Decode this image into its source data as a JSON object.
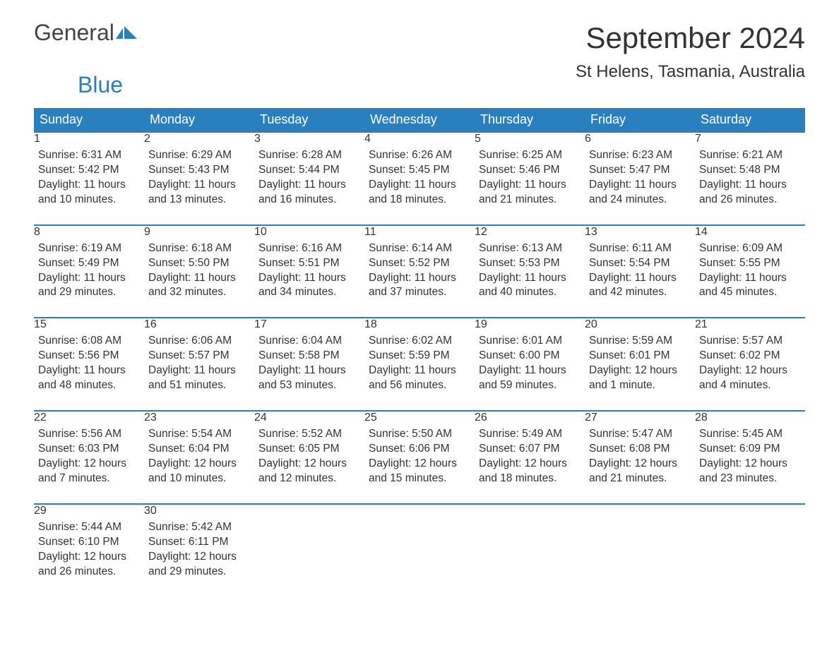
{
  "logo": {
    "part1": "General",
    "part2": "Blue"
  },
  "title": "September 2024",
  "location": "St Helens, Tasmania, Australia",
  "colors": {
    "header_bg": "#2a7fbf",
    "header_text": "#ffffff",
    "daynum_bg": "#eeeeee",
    "daynum_text": "#666666",
    "body_text": "#333333",
    "row_border": "#2a7fbf",
    "page_bg": "#ffffff",
    "logo_gray": "#444444",
    "logo_blue": "#2a7fbf"
  },
  "fonts": {
    "month_title_size_pt": 32,
    "location_size_pt": 18,
    "header_size_pt": 14,
    "daynum_size_pt": 13,
    "body_size_pt": 12
  },
  "weekdays": [
    "Sunday",
    "Monday",
    "Tuesday",
    "Wednesday",
    "Thursday",
    "Friday",
    "Saturday"
  ],
  "weeks": [
    [
      {
        "day": "1",
        "sunrise": "Sunrise: 6:31 AM",
        "sunset": "Sunset: 5:42 PM",
        "d1": "Daylight: 11 hours",
        "d2": "and 10 minutes."
      },
      {
        "day": "2",
        "sunrise": "Sunrise: 6:29 AM",
        "sunset": "Sunset: 5:43 PM",
        "d1": "Daylight: 11 hours",
        "d2": "and 13 minutes."
      },
      {
        "day": "3",
        "sunrise": "Sunrise: 6:28 AM",
        "sunset": "Sunset: 5:44 PM",
        "d1": "Daylight: 11 hours",
        "d2": "and 16 minutes."
      },
      {
        "day": "4",
        "sunrise": "Sunrise: 6:26 AM",
        "sunset": "Sunset: 5:45 PM",
        "d1": "Daylight: 11 hours",
        "d2": "and 18 minutes."
      },
      {
        "day": "5",
        "sunrise": "Sunrise: 6:25 AM",
        "sunset": "Sunset: 5:46 PM",
        "d1": "Daylight: 11 hours",
        "d2": "and 21 minutes."
      },
      {
        "day": "6",
        "sunrise": "Sunrise: 6:23 AM",
        "sunset": "Sunset: 5:47 PM",
        "d1": "Daylight: 11 hours",
        "d2": "and 24 minutes."
      },
      {
        "day": "7",
        "sunrise": "Sunrise: 6:21 AM",
        "sunset": "Sunset: 5:48 PM",
        "d1": "Daylight: 11 hours",
        "d2": "and 26 minutes."
      }
    ],
    [
      {
        "day": "8",
        "sunrise": "Sunrise: 6:19 AM",
        "sunset": "Sunset: 5:49 PM",
        "d1": "Daylight: 11 hours",
        "d2": "and 29 minutes."
      },
      {
        "day": "9",
        "sunrise": "Sunrise: 6:18 AM",
        "sunset": "Sunset: 5:50 PM",
        "d1": "Daylight: 11 hours",
        "d2": "and 32 minutes."
      },
      {
        "day": "10",
        "sunrise": "Sunrise: 6:16 AM",
        "sunset": "Sunset: 5:51 PM",
        "d1": "Daylight: 11 hours",
        "d2": "and 34 minutes."
      },
      {
        "day": "11",
        "sunrise": "Sunrise: 6:14 AM",
        "sunset": "Sunset: 5:52 PM",
        "d1": "Daylight: 11 hours",
        "d2": "and 37 minutes."
      },
      {
        "day": "12",
        "sunrise": "Sunrise: 6:13 AM",
        "sunset": "Sunset: 5:53 PM",
        "d1": "Daylight: 11 hours",
        "d2": "and 40 minutes."
      },
      {
        "day": "13",
        "sunrise": "Sunrise: 6:11 AM",
        "sunset": "Sunset: 5:54 PM",
        "d1": "Daylight: 11 hours",
        "d2": "and 42 minutes."
      },
      {
        "day": "14",
        "sunrise": "Sunrise: 6:09 AM",
        "sunset": "Sunset: 5:55 PM",
        "d1": "Daylight: 11 hours",
        "d2": "and 45 minutes."
      }
    ],
    [
      {
        "day": "15",
        "sunrise": "Sunrise: 6:08 AM",
        "sunset": "Sunset: 5:56 PM",
        "d1": "Daylight: 11 hours",
        "d2": "and 48 minutes."
      },
      {
        "day": "16",
        "sunrise": "Sunrise: 6:06 AM",
        "sunset": "Sunset: 5:57 PM",
        "d1": "Daylight: 11 hours",
        "d2": "and 51 minutes."
      },
      {
        "day": "17",
        "sunrise": "Sunrise: 6:04 AM",
        "sunset": "Sunset: 5:58 PM",
        "d1": "Daylight: 11 hours",
        "d2": "and 53 minutes."
      },
      {
        "day": "18",
        "sunrise": "Sunrise: 6:02 AM",
        "sunset": "Sunset: 5:59 PM",
        "d1": "Daylight: 11 hours",
        "d2": "and 56 minutes."
      },
      {
        "day": "19",
        "sunrise": "Sunrise: 6:01 AM",
        "sunset": "Sunset: 6:00 PM",
        "d1": "Daylight: 11 hours",
        "d2": "and 59 minutes."
      },
      {
        "day": "20",
        "sunrise": "Sunrise: 5:59 AM",
        "sunset": "Sunset: 6:01 PM",
        "d1": "Daylight: 12 hours",
        "d2": "and 1 minute."
      },
      {
        "day": "21",
        "sunrise": "Sunrise: 5:57 AM",
        "sunset": "Sunset: 6:02 PM",
        "d1": "Daylight: 12 hours",
        "d2": "and 4 minutes."
      }
    ],
    [
      {
        "day": "22",
        "sunrise": "Sunrise: 5:56 AM",
        "sunset": "Sunset: 6:03 PM",
        "d1": "Daylight: 12 hours",
        "d2": "and 7 minutes."
      },
      {
        "day": "23",
        "sunrise": "Sunrise: 5:54 AM",
        "sunset": "Sunset: 6:04 PM",
        "d1": "Daylight: 12 hours",
        "d2": "and 10 minutes."
      },
      {
        "day": "24",
        "sunrise": "Sunrise: 5:52 AM",
        "sunset": "Sunset: 6:05 PM",
        "d1": "Daylight: 12 hours",
        "d2": "and 12 minutes."
      },
      {
        "day": "25",
        "sunrise": "Sunrise: 5:50 AM",
        "sunset": "Sunset: 6:06 PM",
        "d1": "Daylight: 12 hours",
        "d2": "and 15 minutes."
      },
      {
        "day": "26",
        "sunrise": "Sunrise: 5:49 AM",
        "sunset": "Sunset: 6:07 PM",
        "d1": "Daylight: 12 hours",
        "d2": "and 18 minutes."
      },
      {
        "day": "27",
        "sunrise": "Sunrise: 5:47 AM",
        "sunset": "Sunset: 6:08 PM",
        "d1": "Daylight: 12 hours",
        "d2": "and 21 minutes."
      },
      {
        "day": "28",
        "sunrise": "Sunrise: 5:45 AM",
        "sunset": "Sunset: 6:09 PM",
        "d1": "Daylight: 12 hours",
        "d2": "and 23 minutes."
      }
    ],
    [
      {
        "day": "29",
        "sunrise": "Sunrise: 5:44 AM",
        "sunset": "Sunset: 6:10 PM",
        "d1": "Daylight: 12 hours",
        "d2": "and 26 minutes."
      },
      {
        "day": "30",
        "sunrise": "Sunrise: 5:42 AM",
        "sunset": "Sunset: 6:11 PM",
        "d1": "Daylight: 12 hours",
        "d2": "and 29 minutes."
      },
      null,
      null,
      null,
      null,
      null
    ]
  ]
}
